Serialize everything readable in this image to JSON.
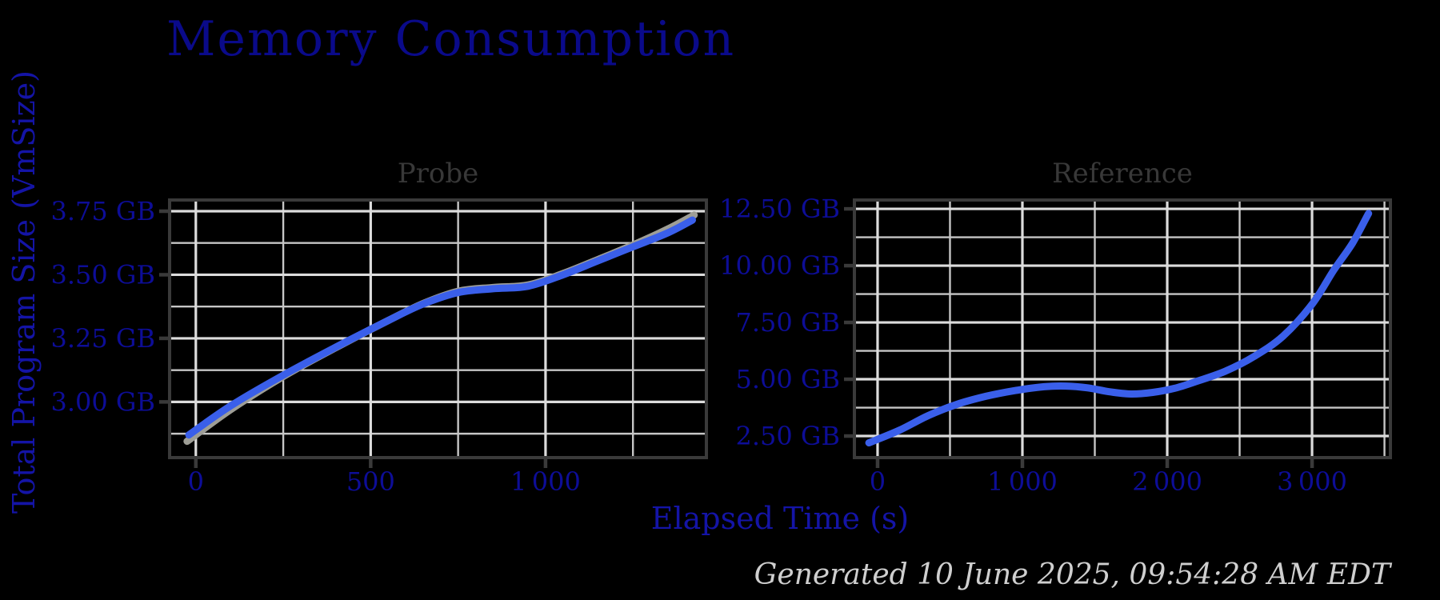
{
  "figure": {
    "title": "Memory Consumption",
    "y_axis_label": "Total Program Size (VmSize)",
    "x_axis_label": "Elapsed Time (s)",
    "generated": "Generated 10 June 2025, 09:54:28 AM EDT",
    "background": "#000000"
  },
  "colors": {
    "title": "#0a0a8a",
    "axis_label": "#1414a6",
    "tick_label": "#0d0d97",
    "subplot_title": "#383838",
    "spine": "#3a3a3a",
    "grid_major": "#dcdcdc",
    "grid_minor": "#c6c6c6",
    "line_blue": "#3a5fea",
    "line_gray": "#9e9e96",
    "footer": "#cfcfcf"
  },
  "chart_data": [
    {
      "id": "probe",
      "type": "line",
      "title": "Probe",
      "xlabel": "Elapsed Time (s)",
      "ylabel": "Total Program Size (VmSize)",
      "xlim": [
        -75,
        1460
      ],
      "ylim": [
        2.781,
        3.794
      ],
      "grid": "major+minor",
      "xticks": {
        "values": [
          0,
          500,
          1000
        ],
        "labels": [
          "0",
          "500",
          "1 000"
        ]
      },
      "yticks": {
        "values": [
          3.0,
          3.25,
          3.5,
          3.75
        ],
        "labels": [
          "3.00 GB",
          "3.25 GB",
          "3.50 GB",
          "3.75 GB"
        ]
      },
      "series": [
        {
          "name": "reference-overlay",
          "color": "#9e9e96",
          "width": 9,
          "points": [
            [
              -25,
              2.845
            ],
            [
              100,
              2.97
            ],
            [
              250,
              3.1
            ],
            [
              400,
              3.213
            ],
            [
              550,
              3.32
            ],
            [
              650,
              3.387
            ],
            [
              750,
              3.435
            ],
            [
              850,
              3.45
            ],
            [
              950,
              3.46
            ],
            [
              1050,
              3.505
            ],
            [
              1150,
              3.56
            ],
            [
              1250,
              3.617
            ],
            [
              1350,
              3.68
            ],
            [
              1425,
              3.735
            ]
          ]
        },
        {
          "name": "probe",
          "color": "#3a5fea",
          "width": 9,
          "points": [
            [
              -20,
              2.87
            ],
            [
              100,
              2.985
            ],
            [
              250,
              3.105
            ],
            [
              400,
              3.215
            ],
            [
              550,
              3.32
            ],
            [
              650,
              3.385
            ],
            [
              750,
              3.43
            ],
            [
              850,
              3.445
            ],
            [
              950,
              3.455
            ],
            [
              1050,
              3.5
            ],
            [
              1150,
              3.555
            ],
            [
              1250,
              3.61
            ],
            [
              1350,
              3.665
            ],
            [
              1420,
              3.715
            ]
          ]
        }
      ]
    },
    {
      "id": "reference",
      "type": "line",
      "title": "Reference",
      "xlabel": "Elapsed Time (s)",
      "ylabel": "Total Program Size (VmSize)",
      "xlim": [
        -160,
        3541
      ],
      "ylim": [
        1.55,
        12.89
      ],
      "grid": "major+minor",
      "xticks": {
        "values": [
          0,
          1000,
          2000,
          3000
        ],
        "labels": [
          "0",
          "1 000",
          "2 000",
          "3 000"
        ]
      },
      "yticks": {
        "values": [
          2.5,
          5.0,
          7.5,
          10.0,
          12.5
        ],
        "labels": [
          "2.50 GB",
          "5.00 GB",
          "7.50 GB",
          "10.00 GB",
          "12.50 GB"
        ]
      },
      "series": [
        {
          "name": "reference",
          "color": "#3a5fea",
          "width": 9,
          "points": [
            [
              -60,
              2.2
            ],
            [
              150,
              2.75
            ],
            [
              350,
              3.4
            ],
            [
              550,
              3.9
            ],
            [
              750,
              4.25
            ],
            [
              950,
              4.5
            ],
            [
              1150,
              4.67
            ],
            [
              1300,
              4.7
            ],
            [
              1450,
              4.62
            ],
            [
              1600,
              4.45
            ],
            [
              1750,
              4.35
            ],
            [
              1900,
              4.42
            ],
            [
              2050,
              4.6
            ],
            [
              2200,
              4.9
            ],
            [
              2400,
              5.35
            ],
            [
              2600,
              6.0
            ],
            [
              2800,
              6.9
            ],
            [
              3000,
              8.3
            ],
            [
              3150,
              9.8
            ],
            [
              3280,
              11.0
            ],
            [
              3390,
              12.3
            ]
          ]
        }
      ]
    }
  ]
}
